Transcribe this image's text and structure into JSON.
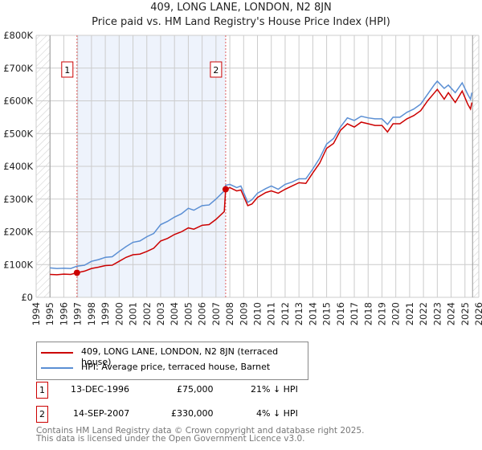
{
  "chart_data": {
    "type": "line",
    "title": "409, LONG LANE, LONDON, N2 8JN",
    "subtitle": "Price paid vs. HM Land Registry's House Price Index (HPI)",
    "xlim": [
      1994,
      2026
    ],
    "ylim": [
      0,
      800000
    ],
    "x_ticks": [
      "1994",
      "1995",
      "1996",
      "1997",
      "1998",
      "1999",
      "2000",
      "2001",
      "2002",
      "2003",
      "2004",
      "2005",
      "2006",
      "2007",
      "2008",
      "2009",
      "2010",
      "2011",
      "2012",
      "2013",
      "2014",
      "2015",
      "2016",
      "2017",
      "2018",
      "2019",
      "2020",
      "2021",
      "2022",
      "2023",
      "2024",
      "2025",
      "2026"
    ],
    "y_ticks": [
      {
        "v": 0,
        "label": "£0"
      },
      {
        "v": 100000,
        "label": "£100K"
      },
      {
        "v": 200000,
        "label": "£200K"
      },
      {
        "v": 300000,
        "label": "£300K"
      },
      {
        "v": 400000,
        "label": "£400K"
      },
      {
        "v": 500000,
        "label": "£500K"
      },
      {
        "v": 600000,
        "label": "£600K"
      },
      {
        "v": 700000,
        "label": "£700K"
      },
      {
        "v": 800000,
        "label": "£800K"
      }
    ],
    "grid": true,
    "series": [
      {
        "name": "409, LONG LANE, LONDON, N2 8JN (terraced house)",
        "color": "#cc0000",
        "points": [
          [
            1995,
            70000
          ],
          [
            1995.5,
            69000
          ],
          [
            1996,
            71000
          ],
          [
            1996.5,
            70000
          ],
          [
            1996.95,
            75000
          ],
          [
            1997.5,
            80000
          ],
          [
            1998,
            88000
          ],
          [
            1998.5,
            92000
          ],
          [
            1999,
            97000
          ],
          [
            1999.5,
            98000
          ],
          [
            2000,
            110000
          ],
          [
            2000.5,
            122000
          ],
          [
            2001,
            130000
          ],
          [
            2001.5,
            132000
          ],
          [
            2002,
            140000
          ],
          [
            2002.5,
            150000
          ],
          [
            2003,
            172000
          ],
          [
            2003.5,
            180000
          ],
          [
            2004,
            192000
          ],
          [
            2004.5,
            200000
          ],
          [
            2005,
            212000
          ],
          [
            2005.4,
            208000
          ],
          [
            2006,
            220000
          ],
          [
            2006.5,
            222000
          ],
          [
            2007,
            238000
          ],
          [
            2007.6,
            262000
          ],
          [
            2007.7,
            330000
          ],
          [
            2008,
            335000
          ],
          [
            2008.5,
            325000
          ],
          [
            2008.8,
            328000
          ],
          [
            2009.3,
            280000
          ],
          [
            2009.6,
            285000
          ],
          [
            2010,
            305000
          ],
          [
            2010.6,
            320000
          ],
          [
            2011,
            325000
          ],
          [
            2011.5,
            318000
          ],
          [
            2012,
            330000
          ],
          [
            2012.5,
            340000
          ],
          [
            2013,
            350000
          ],
          [
            2013.5,
            348000
          ],
          [
            2014,
            380000
          ],
          [
            2014.5,
            410000
          ],
          [
            2015,
            455000
          ],
          [
            2015.5,
            470000
          ],
          [
            2016,
            510000
          ],
          [
            2016.5,
            530000
          ],
          [
            2017,
            520000
          ],
          [
            2017.5,
            535000
          ],
          [
            2018,
            530000
          ],
          [
            2018.5,
            525000
          ],
          [
            2019,
            525000
          ],
          [
            2019.4,
            505000
          ],
          [
            2019.8,
            530000
          ],
          [
            2020.3,
            530000
          ],
          [
            2020.8,
            545000
          ],
          [
            2021.3,
            555000
          ],
          [
            2021.8,
            570000
          ],
          [
            2022.3,
            600000
          ],
          [
            2022.8,
            625000
          ],
          [
            2023,
            635000
          ],
          [
            2023.5,
            605000
          ],
          [
            2023.8,
            625000
          ],
          [
            2024.3,
            595000
          ],
          [
            2024.8,
            630000
          ],
          [
            2025.2,
            590000
          ],
          [
            2025.4,
            575000
          ],
          [
            2025.5,
            595000
          ]
        ]
      },
      {
        "name": "HPI: Average price, terraced house, Barnet",
        "color": "#5b8fd4",
        "points": [
          [
            1995,
            90000
          ],
          [
            1995.5,
            88000
          ],
          [
            1996,
            89000
          ],
          [
            1996.5,
            88000
          ],
          [
            1996.95,
            95000
          ],
          [
            1997.5,
            98000
          ],
          [
            1998,
            110000
          ],
          [
            1998.5,
            115000
          ],
          [
            1999,
            122000
          ],
          [
            1999.5,
            124000
          ],
          [
            2000,
            140000
          ],
          [
            2000.5,
            155000
          ],
          [
            2001,
            168000
          ],
          [
            2001.5,
            172000
          ],
          [
            2002,
            185000
          ],
          [
            2002.5,
            195000
          ],
          [
            2003,
            222000
          ],
          [
            2003.5,
            232000
          ],
          [
            2004,
            245000
          ],
          [
            2004.5,
            255000
          ],
          [
            2005,
            272000
          ],
          [
            2005.4,
            266000
          ],
          [
            2006,
            280000
          ],
          [
            2006.5,
            282000
          ],
          [
            2007,
            300000
          ],
          [
            2007.6,
            325000
          ],
          [
            2007.7,
            342000
          ],
          [
            2008,
            345000
          ],
          [
            2008.5,
            335000
          ],
          [
            2008.8,
            340000
          ],
          [
            2009.3,
            290000
          ],
          [
            2009.6,
            298000
          ],
          [
            2010,
            318000
          ],
          [
            2010.6,
            332000
          ],
          [
            2011,
            340000
          ],
          [
            2011.5,
            330000
          ],
          [
            2012,
            345000
          ],
          [
            2012.5,
            352000
          ],
          [
            2013,
            362000
          ],
          [
            2013.5,
            362000
          ],
          [
            2014,
            392000
          ],
          [
            2014.5,
            425000
          ],
          [
            2015,
            468000
          ],
          [
            2015.5,
            485000
          ],
          [
            2016,
            520000
          ],
          [
            2016.5,
            548000
          ],
          [
            2017,
            540000
          ],
          [
            2017.5,
            553000
          ],
          [
            2018,
            548000
          ],
          [
            2018.5,
            545000
          ],
          [
            2019,
            545000
          ],
          [
            2019.4,
            528000
          ],
          [
            2019.8,
            550000
          ],
          [
            2020.3,
            550000
          ],
          [
            2020.8,
            565000
          ],
          [
            2021.3,
            575000
          ],
          [
            2021.8,
            590000
          ],
          [
            2022.3,
            620000
          ],
          [
            2022.8,
            650000
          ],
          [
            2023,
            660000
          ],
          [
            2023.5,
            638000
          ],
          [
            2023.8,
            648000
          ],
          [
            2024.3,
            625000
          ],
          [
            2024.8,
            655000
          ],
          [
            2025.2,
            620000
          ],
          [
            2025.4,
            605000
          ],
          [
            2025.5,
            625000
          ]
        ]
      }
    ],
    "sales": [
      {
        "id": "1",
        "x": 1996.95,
        "value": 75000
      },
      {
        "id": "2",
        "x": 2007.7,
        "value": 330000
      }
    ]
  },
  "legend": {
    "items": [
      {
        "label": "409, LONG LANE, LONDON, N2 8JN (terraced house)",
        "color": "#cc0000"
      },
      {
        "label": "HPI: Average price, terraced house, Barnet",
        "color": "#5b8fd4"
      }
    ]
  },
  "transactions": [
    {
      "id": "1",
      "date": "13-DEC-1996",
      "price": "£75,000",
      "diff": "21% ↓ HPI"
    },
    {
      "id": "2",
      "date": "14-SEP-2007",
      "price": "£330,000",
      "diff": "4% ↓ HPI"
    }
  ],
  "footer": {
    "line1": "Contains HM Land Registry data © Crown copyright and database right 2025.",
    "line2": "This data is licensed under the Open Government Licence v3.0."
  }
}
